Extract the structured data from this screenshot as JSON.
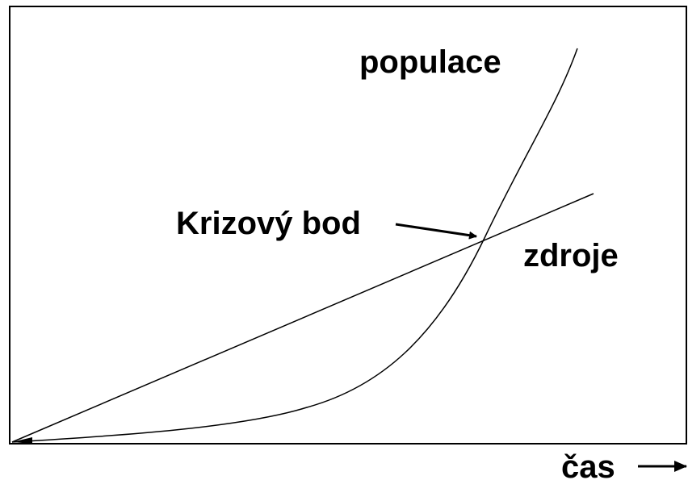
{
  "labels": {
    "population": "populace",
    "crisis_point": "Krizový bod",
    "resources": "zdroje",
    "time": "čas"
  }
}
